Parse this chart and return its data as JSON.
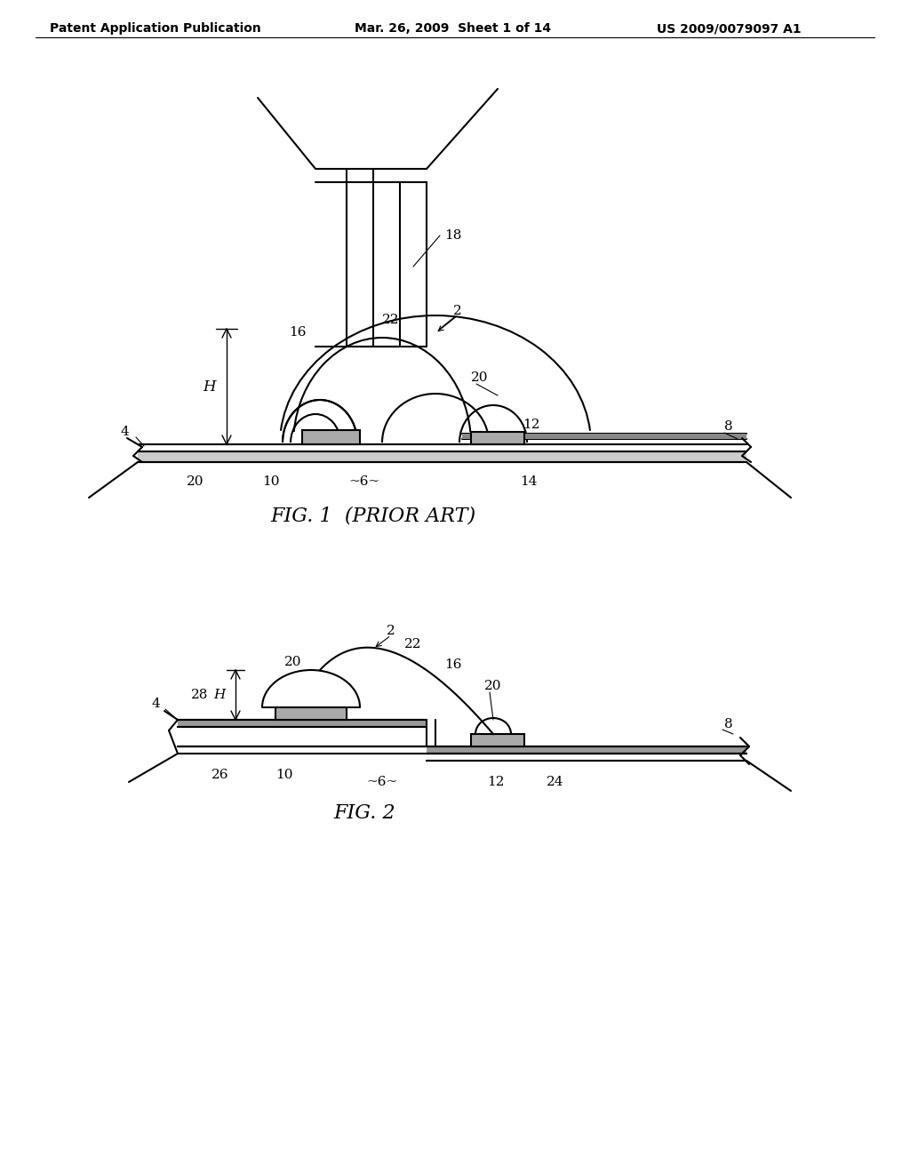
{
  "bg_color": "#ffffff",
  "line_color": "#000000",
  "header_left": "Patent Application Publication",
  "header_mid": "Mar. 26, 2009  Sheet 1 of 14",
  "header_right": "US 2009/0079097 A1",
  "fig1_caption": "FIG. 1  (PRIOR ART)",
  "fig2_caption": "FIG. 2"
}
